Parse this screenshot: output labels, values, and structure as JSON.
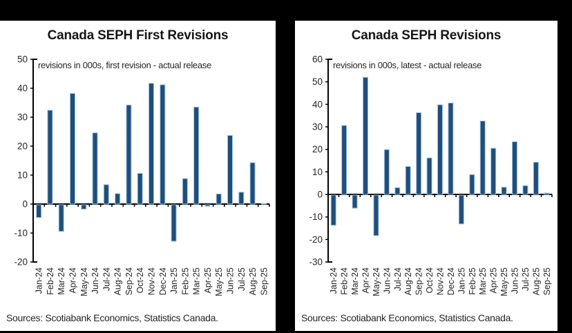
{
  "page": {
    "background": "#000000"
  },
  "chart_data": [
    {
      "type": "bar",
      "title": "Canada SEPH First Revisions",
      "subtitle": "revisions in 000s, first revision - actual release",
      "source_note": "Sources: Scotiabank Economics, Statistics Canada.",
      "categories": [
        "Jan-24",
        "Feb-24",
        "Mar-24",
        "Apr-24",
        "May-24",
        "Jun-24",
        "Jul-24",
        "Aug-24",
        "Sep-24",
        "Oct-24",
        "Nov-24",
        "Dec-24",
        "Jan-25",
        "Feb-25",
        "Mar-25",
        "Apr-25",
        "May-25",
        "Jun-25",
        "Jul-25",
        "Aug-25",
        "Sep-25"
      ],
      "values": [
        -4.4,
        32.4,
        -9.2,
        38.2,
        -1.5,
        24.6,
        6.7,
        3.6,
        34.2,
        10.6,
        41.7,
        41.2,
        -12.6,
        8.8,
        33.5,
        -0.5,
        3.5,
        23.7,
        4.1,
        14.3,
        0.2
      ],
      "xlabel": "",
      "ylabel": "",
      "ylim": [
        -20,
        50
      ],
      "ytick_step": 10,
      "grid": false,
      "legend_position": "none",
      "bar_color": "#1f4e79",
      "bar_border_color": "#9dc3e6",
      "axis_color": "#000000",
      "text_color": "#262626"
    },
    {
      "type": "bar",
      "title": "Canada SEPH Revisions",
      "subtitle": "revisions in 000s, latest - actual release",
      "source_note": "Sources: Scotiabank Economics, Statistics Canada.",
      "categories": [
        "Jan-24",
        "Feb-24",
        "Mar-24",
        "Apr-24",
        "May-24",
        "Jun-24",
        "Jul-24",
        "Aug-24",
        "Sep-24",
        "Oct-24",
        "Nov-24",
        "Dec-24",
        "Jan-25",
        "Feb-25",
        "Mar-25",
        "Apr-25",
        "May-25",
        "Jun-25",
        "Jul-25",
        "Aug-25",
        "Sep-25"
      ],
      "values": [
        -13.4,
        30.6,
        -5.8,
        52.0,
        -18.0,
        19.9,
        3.0,
        12.4,
        36.3,
        16.2,
        39.8,
        40.6,
        -12.8,
        8.8,
        32.6,
        20.5,
        3.2,
        23.4,
        3.9,
        14.3,
        0.6
      ],
      "xlabel": "",
      "ylabel": "",
      "ylim": [
        -30,
        60
      ],
      "ytick_step": 10,
      "grid": false,
      "legend_position": "none",
      "bar_color": "#1f4e79",
      "bar_border_color": "#9dc3e6",
      "axis_color": "#000000",
      "text_color": "#262626"
    }
  ]
}
